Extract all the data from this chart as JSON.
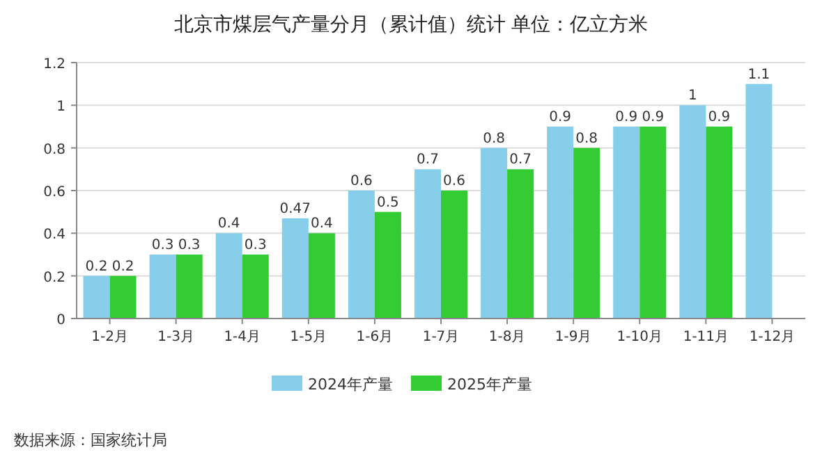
{
  "chart_data": {
    "type": "bar",
    "title": "北京市煤层气产量分月（累计值）统计 单位：亿立方米",
    "categories": [
      "1-2月",
      "1-3月",
      "1-4月",
      "1-5月",
      "1-6月",
      "1-7月",
      "1-8月",
      "1-9月",
      "1-10月",
      "1-11月",
      "1-12月"
    ],
    "series": [
      {
        "name": "2024年产量",
        "color": "#87ceeb",
        "values": [
          0.2,
          0.3,
          0.4,
          0.47,
          0.6,
          0.7,
          0.8,
          0.9,
          0.9,
          1,
          1.1
        ]
      },
      {
        "name": "2025年产量",
        "color": "#33cc33",
        "values": [
          0.2,
          0.3,
          0.3,
          0.4,
          0.5,
          0.6,
          0.7,
          0.8,
          0.9,
          0.9,
          null
        ]
      }
    ],
    "ylim": [
      0,
      1.2
    ],
    "yticks": [
      0,
      0.2,
      0.4,
      0.6,
      0.8,
      1,
      1.2
    ],
    "grid": "y",
    "legend": "bottom",
    "data_labels": true,
    "annotations": [
      "数据来源：国家统计局"
    ]
  }
}
